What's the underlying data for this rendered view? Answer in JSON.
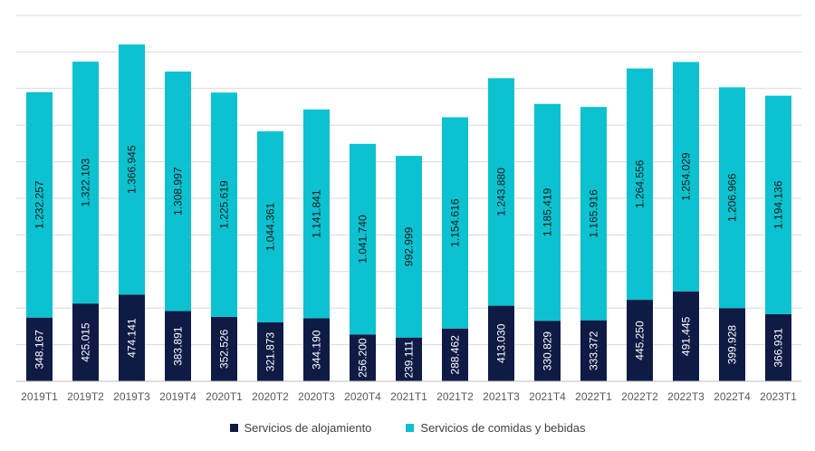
{
  "chart_data": {
    "type": "bar",
    "stacked": true,
    "grid": true,
    "legend_position": "bottom",
    "ylim": [
      0,
      2000000
    ],
    "categories": [
      "2019T1",
      "2019T2",
      "2019T3",
      "2019T4",
      "2020T1",
      "2020T2",
      "2020T3",
      "2020T4",
      "2021T1",
      "2021T2",
      "2021T3",
      "2021T4",
      "2022T1",
      "2022T2",
      "2022T3",
      "2022T4",
      "2023T1"
    ],
    "series": [
      {
        "name": "Servicios de alojamiento",
        "color": "#0f1b45",
        "values": [
          348167,
          425015,
          474141,
          383891,
          352526,
          321873,
          344190,
          256200,
          239111,
          288462,
          413030,
          330829,
          333372,
          445250,
          491445,
          399928,
          366931
        ],
        "labels": [
          "348.167",
          "425.015",
          "474.141",
          "383.891",
          "352.526",
          "321.873",
          "344.190",
          "256.200",
          "239.111",
          "288.462",
          "413.030",
          "330.829",
          "333.372",
          "445.250",
          "491.445",
          "399.928",
          "366.931"
        ]
      },
      {
        "name": "Servicios de comidas y bebidas",
        "color": "#0cc1d0",
        "values": [
          1232257,
          1322103,
          1366945,
          1308997,
          1225619,
          1044361,
          1141841,
          1041740,
          992999,
          1154616,
          1243880,
          1185419,
          1165916,
          1264556,
          1254029,
          1206966,
          1194136
        ],
        "labels": [
          "1.232.257",
          "1.322.103",
          "1.366.945",
          "1.308.997",
          "1.225.619",
          "1.044.361",
          "1.141.841",
          "1.041.740",
          "992.999",
          "1.154.616",
          "1.243.880",
          "1.185.419",
          "1.165.916",
          "1.264.556",
          "1.254.029",
          "1.206.966",
          "1.194.136"
        ]
      }
    ]
  }
}
